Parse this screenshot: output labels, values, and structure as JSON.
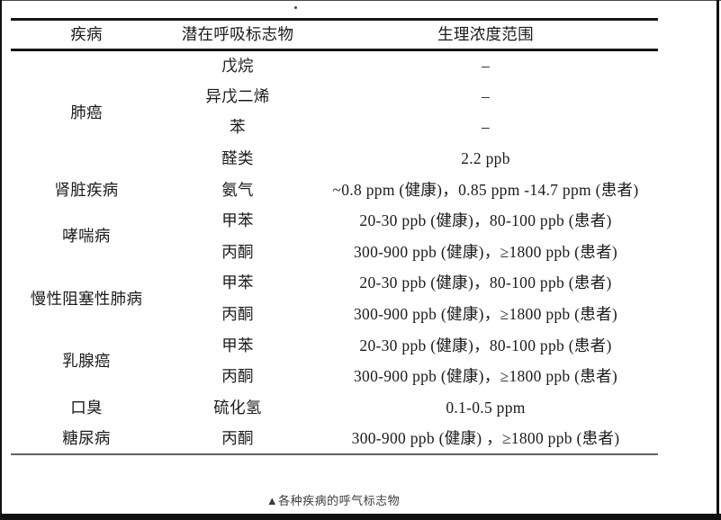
{
  "table": {
    "headers": [
      "疾病",
      "潜在呼吸标志物",
      "生理浓度范围"
    ],
    "groups": [
      {
        "disease": "肺癌",
        "rows": [
          {
            "marker": "戊烷",
            "range": "–"
          },
          {
            "marker": "异戊二烯",
            "range": "–"
          },
          {
            "marker": "苯",
            "range": "–"
          },
          {
            "marker": "醛类",
            "range": "2.2 ppb"
          }
        ]
      },
      {
        "disease": "肾脏疾病",
        "rows": [
          {
            "marker": "氨气",
            "range": "~0.8 ppm (健康)，0.85 ppm -14.7 ppm (患者)"
          }
        ]
      },
      {
        "disease": "哮喘病",
        "rows": [
          {
            "marker": "甲苯",
            "range": "20-30 ppb (健康)，80-100 ppb (患者)"
          },
          {
            "marker": "丙酮",
            "range": "300-900 ppb (健康)，≥1800 ppb (患者)"
          }
        ]
      },
      {
        "disease": "慢性阻塞性肺病",
        "rows": [
          {
            "marker": "甲苯",
            "range": "20-30 ppb (健康)，80-100 ppb (患者)"
          },
          {
            "marker": "丙酮",
            "range": "300-900 ppb (健康)，≥1800 ppb (患者)"
          }
        ]
      },
      {
        "disease": "乳腺癌",
        "rows": [
          {
            "marker": "甲苯",
            "range": "20-30 ppb (健康)，80-100 ppb (患者)"
          },
          {
            "marker": "丙酮",
            "range": "300-900 ppb (健康)，≥1800 ppb (患者)"
          }
        ]
      },
      {
        "disease": "口臭",
        "rows": [
          {
            "marker": "硫化氢",
            "range": "0.1-0.5 ppm"
          }
        ]
      },
      {
        "disease": "糖尿病",
        "rows": [
          {
            "marker": "丙酮",
            "range": "300-900 ppb (健康) ，≥1800 ppb (患者)"
          }
        ]
      }
    ]
  },
  "caption": "▲各种疾病的呼气标志物"
}
